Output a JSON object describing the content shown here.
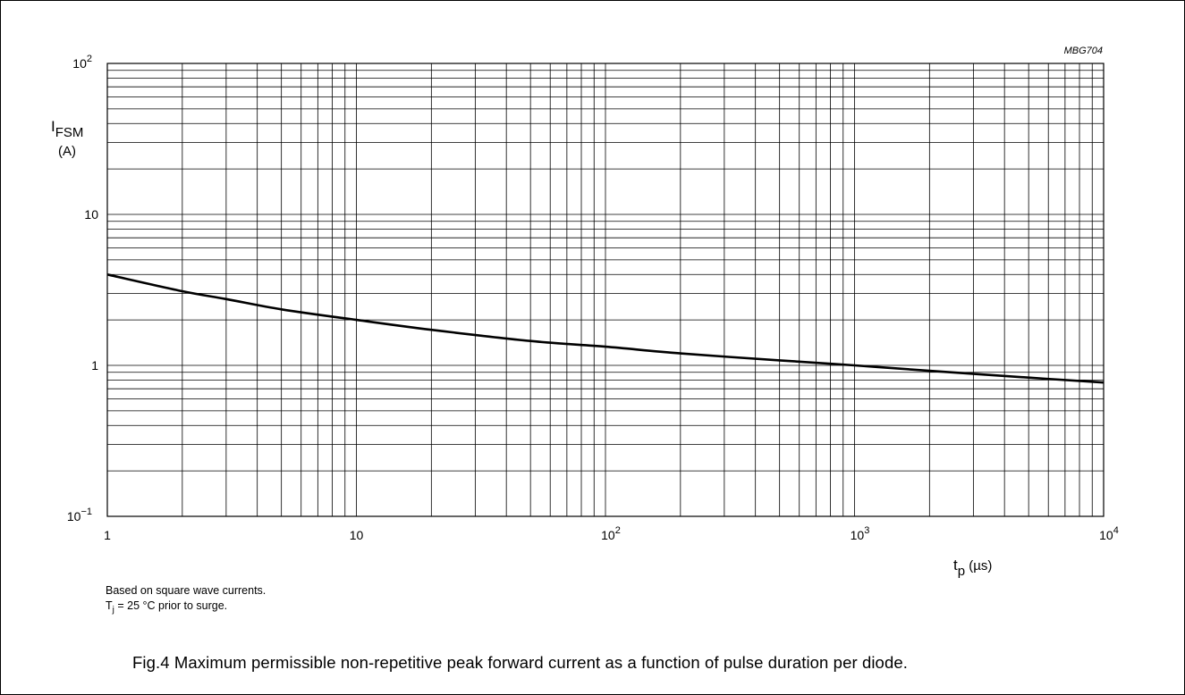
{
  "chart_data": {
    "type": "line",
    "x_scale": "log",
    "y_scale": "log",
    "xlim": [
      1,
      10000
    ],
    "ylim": [
      0.1,
      100
    ],
    "grid": true,
    "ref_code": "MBG704",
    "ylabel": {
      "symbol": "I",
      "sub": "FSM",
      "unit": "(A)"
    },
    "xlabel": {
      "symbol": "t",
      "sub": "p",
      "unit": " (µs)"
    },
    "x_ticks": [
      {
        "value": 1,
        "base": "1",
        "exp": ""
      },
      {
        "value": 10,
        "base": "10",
        "exp": ""
      },
      {
        "value": 100,
        "base": "10",
        "exp": "2"
      },
      {
        "value": 1000,
        "base": "10",
        "exp": "3"
      },
      {
        "value": 10000,
        "base": "10",
        "exp": "4"
      }
    ],
    "y_ticks": [
      {
        "value": 0.1,
        "base": "10",
        "exp": "−1"
      },
      {
        "value": 1,
        "base": "1",
        "exp": ""
      },
      {
        "value": 10,
        "base": "10",
        "exp": ""
      },
      {
        "value": 100,
        "base": "10",
        "exp": "2"
      }
    ],
    "series": [
      {
        "x": [
          1,
          2,
          3,
          5,
          10,
          20,
          50,
          100,
          200,
          500,
          1000,
          2000,
          5000,
          10000
        ],
        "y": [
          4.0,
          3.1,
          2.75,
          2.35,
          2.0,
          1.72,
          1.45,
          1.33,
          1.2,
          1.08,
          1.0,
          0.92,
          0.83,
          0.77
        ]
      }
    ]
  },
  "notes": {
    "line1": "Based on square wave currents.",
    "line2_prefix": "T",
    "line2_sub": "j",
    "line2_suffix": " = 25 °C prior to surge."
  },
  "caption": "Fig.4  Maximum permissible non-repetitive peak forward current as a function of pulse duration per diode."
}
